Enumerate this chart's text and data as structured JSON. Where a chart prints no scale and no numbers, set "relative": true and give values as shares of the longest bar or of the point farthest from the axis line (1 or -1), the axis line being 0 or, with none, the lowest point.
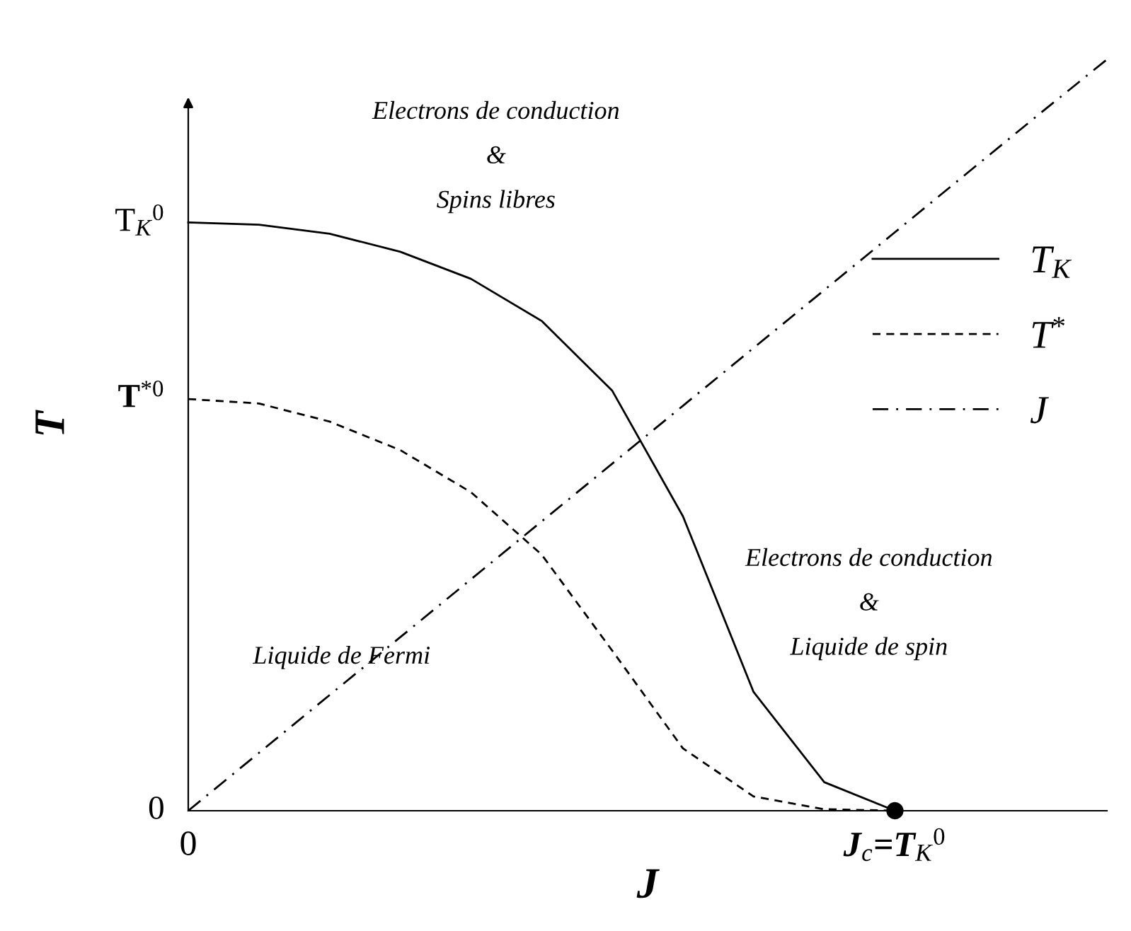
{
  "chart_data": {
    "type": "line",
    "relative": true,
    "xlabel": "J",
    "ylabel": "T",
    "categories": [
      "0",
      null,
      null,
      null,
      null,
      null,
      null,
      null,
      null,
      null,
      "J$_{c}$=T$_{K}$$^{0}$",
      null,
      null,
      null
    ],
    "legend": "top right",
    "grid": false,
    "series": [
      {
        "name": "T$_{K}$",
        "color": "#000000",
        "line_style": "solid",
        "marker": "none",
        "values": [
          0.783,
          0.78,
          0.768,
          0.744,
          0.708,
          0.652,
          0.559,
          0.392,
          0.158,
          0.038,
          0,
          null,
          null,
          null
        ]
      },
      {
        "name": "T$^{*}$",
        "color": "#000000",
        "line_style": "dashed",
        "marker": "none",
        "values": [
          0.548,
          0.542,
          0.518,
          0.48,
          0.424,
          0.341,
          0.213,
          0.083,
          0.019,
          0.002,
          0,
          null,
          null,
          null
        ]
      },
      {
        "name": "J",
        "color": "#000000",
        "line_style": "dashdot",
        "marker": "none",
        "values": [
          0,
          0.077,
          0.154,
          0.231,
          0.308,
          0.385,
          0.462,
          0.539,
          0.616,
          0.693,
          0.77,
          0.847,
          0.924,
          1
        ]
      },
      {
        "type": "scatter",
        "color": "#000000",
        "marker": "circle",
        "values": [
          null,
          null,
          null,
          null,
          null,
          null,
          null,
          null,
          null,
          null,
          0,
          null,
          null,
          null
        ]
      }
    ],
    "annotations": [
      "0",
      "T$_{K}$$^{0}$",
      "T$^{*0}$",
      "Electrons de conduction\n&\nSpins libres",
      "Electrons de conduction\n&\nLiquide de spin",
      "Liquide de Fermi"
    ]
  }
}
